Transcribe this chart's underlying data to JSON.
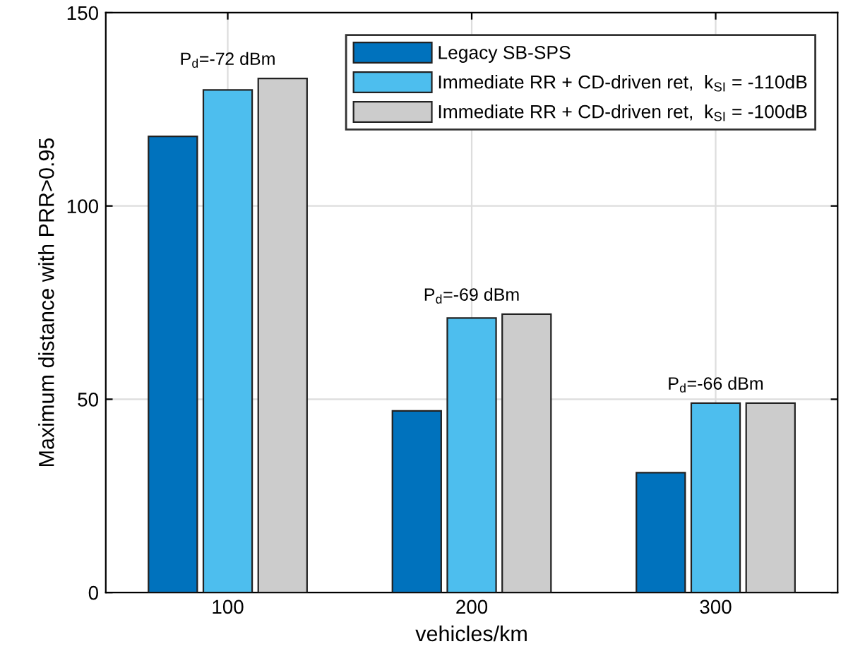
{
  "chart_data": {
    "type": "bar",
    "xlabel": "vehicles/km",
    "ylabel": "Maximum distance with PRR>0.95",
    "categories": [
      "100",
      "200",
      "300"
    ],
    "series": [
      {
        "name": "Legacy SB-SPS",
        "color": "#0072bd",
        "values": [
          118,
          47,
          31
        ]
      },
      {
        "name": "Immediate RR + CD-driven ret,  k$_{SI}$ = -110dB",
        "color": "#4dbeee",
        "values": [
          130,
          71,
          49
        ]
      },
      {
        "name": "Immediate RR + CD-driven ret,  k$_{SI}$ = -100dB",
        "color": "#cccccc",
        "values": [
          133,
          72,
          49
        ]
      }
    ],
    "ylim": [
      0,
      150
    ],
    "yticks": [
      0,
      50,
      100,
      150
    ],
    "grid": true,
    "legend": "top right",
    "annotations": [
      "P$_{d}$=-72 dBm",
      "P$_{d}$=-69 dBm",
      "P$_{d}$=-66 dBm"
    ]
  }
}
